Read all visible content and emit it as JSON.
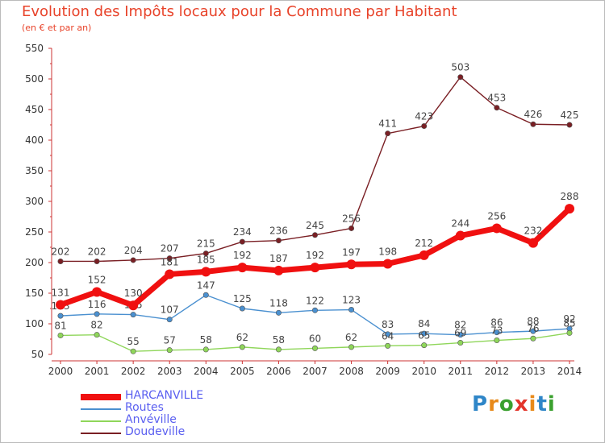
{
  "header": {
    "title": "Evolution des Impôts locaux pour la Commune par Habitant",
    "subtitle": "(en € et par an)"
  },
  "brand": {
    "logo_text": "Proxiti",
    "colors": [
      "#2f86c8",
      "#e88a1a",
      "#3aa02e",
      "#e3352b",
      "#e88a1a",
      "#2f86c8",
      "#3aa02e"
    ]
  },
  "chart_data": {
    "type": "line",
    "title": "Evolution des Impôts locaux pour la Commune par Habitant",
    "subtitle": "(en € et par an)",
    "x": [
      "2000",
      "2001",
      "2002",
      "2003",
      "2004",
      "2005",
      "2006",
      "2007",
      "2008",
      "2009",
      "2010",
      "2011",
      "2012",
      "2013",
      "2014"
    ],
    "ylim": [
      50,
      550
    ],
    "yticks": [
      50,
      100,
      150,
      200,
      250,
      300,
      350,
      400,
      450,
      500,
      550
    ],
    "grid": false,
    "legend_position": "bottom-left",
    "series": [
      {
        "name": "Doudeville",
        "color": "#7a1f24",
        "width": 1.4,
        "values": [
          202,
          202,
          204,
          207,
          215,
          234,
          236,
          245,
          256,
          411,
          423,
          503,
          453,
          426,
          425
        ],
        "labels": [
          "202",
          "202",
          "204",
          "207",
          "215",
          "234",
          "236",
          "245",
          "256",
          "411",
          "423",
          "503",
          "453",
          "426",
          "425"
        ]
      },
      {
        "name": "Routes",
        "color": "#4a90d0",
        "width": 1.4,
        "values": [
          113,
          116,
          115,
          107,
          147,
          125,
          118,
          122,
          123,
          83,
          84,
          82,
          86,
          88,
          92
        ],
        "labels": [
          "113",
          "116",
          "115",
          "107",
          "147",
          "125",
          "118",
          "122",
          "123",
          "83",
          "84",
          "82",
          "86",
          "88",
          "92"
        ]
      },
      {
        "name": "Anvéville",
        "color": "#8fd65a",
        "width": 1.4,
        "values": [
          81,
          82,
          55,
          57,
          58,
          62,
          58,
          60,
          62,
          64,
          65,
          69,
          73,
          76,
          85
        ],
        "labels": [
          "81",
          "82",
          "55",
          "57",
          "58",
          "62",
          "58",
          "60",
          "62",
          "64",
          "65",
          "69",
          "73",
          "76",
          "85"
        ]
      },
      {
        "name": "HARCANVILLE",
        "color": "#f01010",
        "width": 7,
        "values": [
          131,
          152,
          130,
          181,
          185,
          192,
          187,
          192,
          197,
          198,
          212,
          244,
          256,
          232,
          288
        ],
        "labels": [
          "131",
          "152",
          "130",
          "181",
          "185",
          "192",
          "187",
          "192",
          "197",
          "198",
          "212",
          "244",
          "256",
          "232",
          "288"
        ]
      }
    ],
    "legend_order": [
      "HARCANVILLE",
      "Routes",
      "Anvéville",
      "Doudeville"
    ]
  }
}
